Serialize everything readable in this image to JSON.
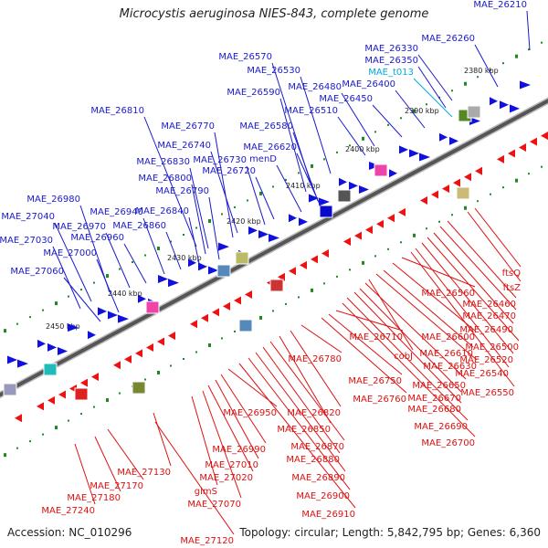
{
  "title": "Microcystis aeruginosa NIES-843, complete genome",
  "footer": {
    "accession": "Accession: NC_010296",
    "summary": "Topology: circular; Length: 5,842,795 bp; Genes: 6,360"
  },
  "colors": {
    "forward_label": "#1a1acc",
    "reverse_label": "#dd1111",
    "rna_label": "#00aadd",
    "forward_feature": "#1111dd",
    "reverse_feature": "#ee1111",
    "tick": "#228822",
    "axis": "#555555"
  },
  "kbp_ticks": [
    "2380 kbp",
    "2390 kbp",
    "2400 kbp",
    "2410 kbp",
    "2420 kbp",
    "2430 kbp",
    "2440 kbp",
    "2450 kbp"
  ],
  "forward_labels": [
    "MAE_26210",
    "MAE_26260",
    "MAE_26330",
    "MAE_26350",
    "MAE_26400",
    "MAE_26450",
    "MAE_26480",
    "MAE_26510",
    "MAE_26530",
    "MAE_26570",
    "MAE_26590",
    "MAE_26580",
    "MAE_26620",
    "menD",
    "MAE_26720",
    "MAE_26730",
    "MAE_26740",
    "MAE_26770",
    "MAE_26810",
    "MAE_26830",
    "MAE_26800",
    "MAE_26790",
    "MAE_26840",
    "MAE_26860",
    "MAE_26940",
    "MAE_26960",
    "MAE_26970",
    "MAE_26980",
    "MAE_27040",
    "MAE_27030",
    "MAE_27000",
    "MAE_27060"
  ],
  "rna_labels": [
    "MAE_t013"
  ],
  "reverse_labels": [
    "ftsQ",
    "ftsZ",
    "MAE_26460",
    "MAE_26470",
    "MAE_26490",
    "MAE_26500",
    "MAE_26520",
    "MAE_26540",
    "MAE_26550",
    "MAE_26560",
    "MAE_26600",
    "MAE_26610",
    "MAE_26630",
    "cobJ",
    "MAE_26650",
    "MAE_26670",
    "MAE_26680",
    "MAE_26690",
    "MAE_26700",
    "MAE_26710",
    "MAE_26750",
    "MAE_26760",
    "MAE_26780",
    "MAE_26820",
    "MAE_26850",
    "MAE_26870",
    "MAE_26880",
    "MAE_26890",
    "MAE_26900",
    "MAE_26910",
    "MAE_26950",
    "MAE_26990",
    "MAE_27010",
    "MAE_27020",
    "MAE_27070",
    "glmS",
    "MAE_27130",
    "MAE_27120",
    "MAE_27170",
    "MAE_27180",
    "MAE_27240"
  ]
}
